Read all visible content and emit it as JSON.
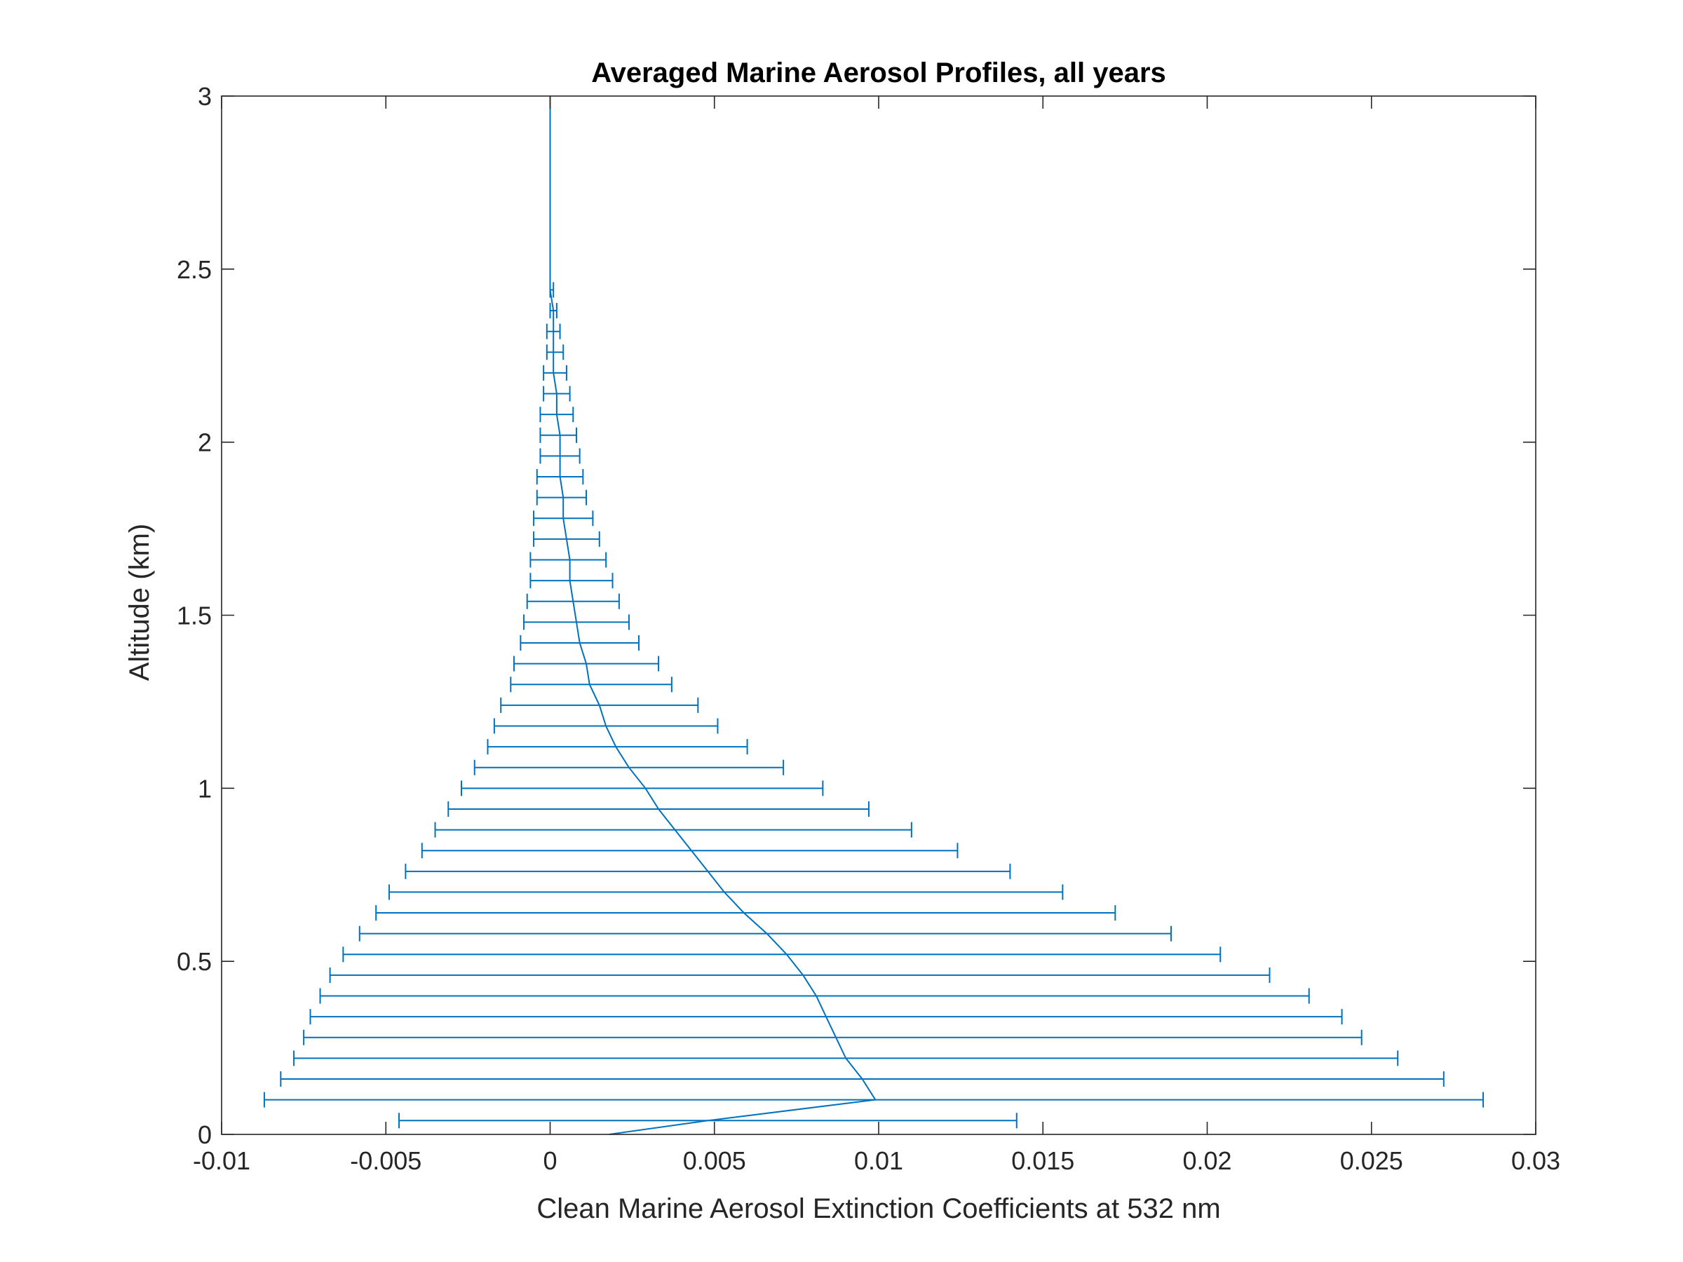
{
  "chart_data": {
    "type": "line",
    "title": "Averaged Marine Aerosol Profiles, all years",
    "xlabel": "Clean Marine Aerosol Extinction Coefficients at 532 nm",
    "ylabel": "Altitude (km)",
    "xlim": [
      -0.01,
      0.03
    ],
    "ylim": [
      0,
      3
    ],
    "x_ticks": [
      -0.01,
      -0.005,
      0,
      0.005,
      0.01,
      0.015,
      0.02,
      0.025,
      0.03
    ],
    "x_tick_labels": [
      "-0.01",
      "-0.005",
      "0",
      "0.005",
      "0.01",
      "0.015",
      "0.02",
      "0.025",
      "0.03"
    ],
    "y_ticks": [
      0,
      0.5,
      1,
      1.5,
      2,
      2.5,
      3
    ],
    "y_tick_labels": [
      "0",
      "0.5",
      "1",
      "1.5",
      "2",
      "2.5",
      "3"
    ],
    "grid": false,
    "colors": {
      "series": "#0072BD",
      "axes": "#262626"
    },
    "series": [
      {
        "error_bars": "horizontal",
        "points": [
          {
            "y": 0.0,
            "x": 0.0018
          },
          {
            "y": 0.04,
            "x": 0.0048,
            "lo": -0.0046,
            "hi": 0.0142
          },
          {
            "y": 0.1,
            "x": 0.0099,
            "lo": -0.0087,
            "hi": 0.0284
          },
          {
            "y": 0.16,
            "x": 0.0095,
            "lo": -0.0082,
            "hi": 0.0272
          },
          {
            "y": 0.22,
            "x": 0.009,
            "lo": -0.0078,
            "hi": 0.0258
          },
          {
            "y": 0.28,
            "x": 0.0087,
            "lo": -0.0075,
            "hi": 0.0247
          },
          {
            "y": 0.34,
            "x": 0.0084,
            "lo": -0.0073,
            "hi": 0.0241
          },
          {
            "y": 0.4,
            "x": 0.0081,
            "lo": -0.007,
            "hi": 0.0231
          },
          {
            "y": 0.46,
            "x": 0.0077,
            "lo": -0.0067,
            "hi": 0.0219
          },
          {
            "y": 0.52,
            "x": 0.0072,
            "lo": -0.0063,
            "hi": 0.0204
          },
          {
            "y": 0.58,
            "x": 0.0066,
            "lo": -0.0058,
            "hi": 0.0189
          },
          {
            "y": 0.64,
            "x": 0.0059,
            "lo": -0.0053,
            "hi": 0.0172
          },
          {
            "y": 0.7,
            "x": 0.0053,
            "lo": -0.0049,
            "hi": 0.0156
          },
          {
            "y": 0.76,
            "x": 0.0048,
            "lo": -0.0044,
            "hi": 0.014
          },
          {
            "y": 0.82,
            "x": 0.0043,
            "lo": -0.0039,
            "hi": 0.0124
          },
          {
            "y": 0.88,
            "x": 0.0038,
            "lo": -0.0035,
            "hi": 0.011
          },
          {
            "y": 0.94,
            "x": 0.0033,
            "lo": -0.0031,
            "hi": 0.0097
          },
          {
            "y": 1.0,
            "x": 0.0029,
            "lo": -0.0027,
            "hi": 0.0083
          },
          {
            "y": 1.06,
            "x": 0.0024,
            "lo": -0.0023,
            "hi": 0.0071
          },
          {
            "y": 1.12,
            "x": 0.002,
            "lo": -0.0019,
            "hi": 0.006
          },
          {
            "y": 1.18,
            "x": 0.0017,
            "lo": -0.0017,
            "hi": 0.0051
          },
          {
            "y": 1.24,
            "x": 0.0015,
            "lo": -0.0015,
            "hi": 0.0045
          },
          {
            "y": 1.3,
            "x": 0.0012,
            "lo": -0.0012,
            "hi": 0.0037
          },
          {
            "y": 1.36,
            "x": 0.0011,
            "lo": -0.0011,
            "hi": 0.0033
          },
          {
            "y": 1.42,
            "x": 0.0009,
            "lo": -0.0009,
            "hi": 0.0027
          },
          {
            "y": 1.48,
            "x": 0.0008,
            "lo": -0.0008,
            "hi": 0.0024
          },
          {
            "y": 1.54,
            "x": 0.0007,
            "lo": -0.0007,
            "hi": 0.0021
          },
          {
            "y": 1.6,
            "x": 0.0006,
            "lo": -0.0006,
            "hi": 0.0019
          },
          {
            "y": 1.66,
            "x": 0.0006,
            "lo": -0.0006,
            "hi": 0.0017
          },
          {
            "y": 1.72,
            "x": 0.0005,
            "lo": -0.0005,
            "hi": 0.0015
          },
          {
            "y": 1.78,
            "x": 0.0004,
            "lo": -0.0005,
            "hi": 0.0013
          },
          {
            "y": 1.84,
            "x": 0.0004,
            "lo": -0.0004,
            "hi": 0.0011
          },
          {
            "y": 1.9,
            "x": 0.0003,
            "lo": -0.0004,
            "hi": 0.001
          },
          {
            "y": 1.96,
            "x": 0.0003,
            "lo": -0.0003,
            "hi": 0.0009
          },
          {
            "y": 2.02,
            "x": 0.0003,
            "lo": -0.0003,
            "hi": 0.0008
          },
          {
            "y": 2.08,
            "x": 0.0002,
            "lo": -0.0003,
            "hi": 0.0007
          },
          {
            "y": 2.14,
            "x": 0.0002,
            "lo": -0.0002,
            "hi": 0.0006
          },
          {
            "y": 2.2,
            "x": 0.0001,
            "lo": -0.0002,
            "hi": 0.0005
          },
          {
            "y": 2.26,
            "x": 0.0001,
            "lo": -0.0001,
            "hi": 0.0004
          },
          {
            "y": 2.32,
            "x": 0.0001,
            "lo": -0.0001,
            "hi": 0.0003
          },
          {
            "y": 2.38,
            "x": 0.0001,
            "lo": 0.0,
            "hi": 0.0002
          },
          {
            "y": 2.44,
            "x": 0.0,
            "lo": 0.0,
            "hi": 0.0001
          },
          {
            "y": 2.5,
            "x": 0.0
          },
          {
            "y": 2.6,
            "x": 0.0
          },
          {
            "y": 2.7,
            "x": 0.0
          },
          {
            "y": 2.8,
            "x": 0.0
          },
          {
            "y": 2.9,
            "x": 0.0
          },
          {
            "y": 3.0,
            "x": 0.0
          }
        ]
      }
    ]
  }
}
